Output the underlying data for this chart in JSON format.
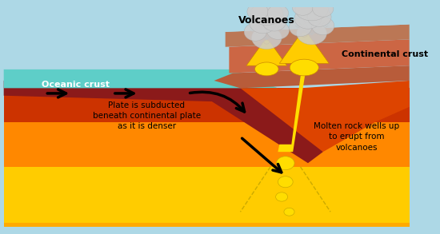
{
  "fig_width": 5.5,
  "fig_height": 2.93,
  "dpi": 100,
  "bg_color": "#add8e6",
  "border_color": "#888888",
  "ocean_water_color": "#5ecec8",
  "oceanic_crust_color": "#8b1a1a",
  "mantle_top_color": "#cc3300",
  "mantle_bottom_color": "#ffaa00",
  "continental_crust_color": "#cc4422",
  "continental_surface_color": "#cc9977",
  "volcano_body_color": "#ffcc00",
  "smoke_color": "#cccccc",
  "text_oceanic": "Oceanic crust",
  "text_continental": "Continental crust",
  "text_volcanoes": "Volcanoes",
  "text_plate": "Plate is subducted\nbeneath continental plate\nas it is denser",
  "text_molten": "Molten rock wells up\nto erupt from\nvolcanoes"
}
